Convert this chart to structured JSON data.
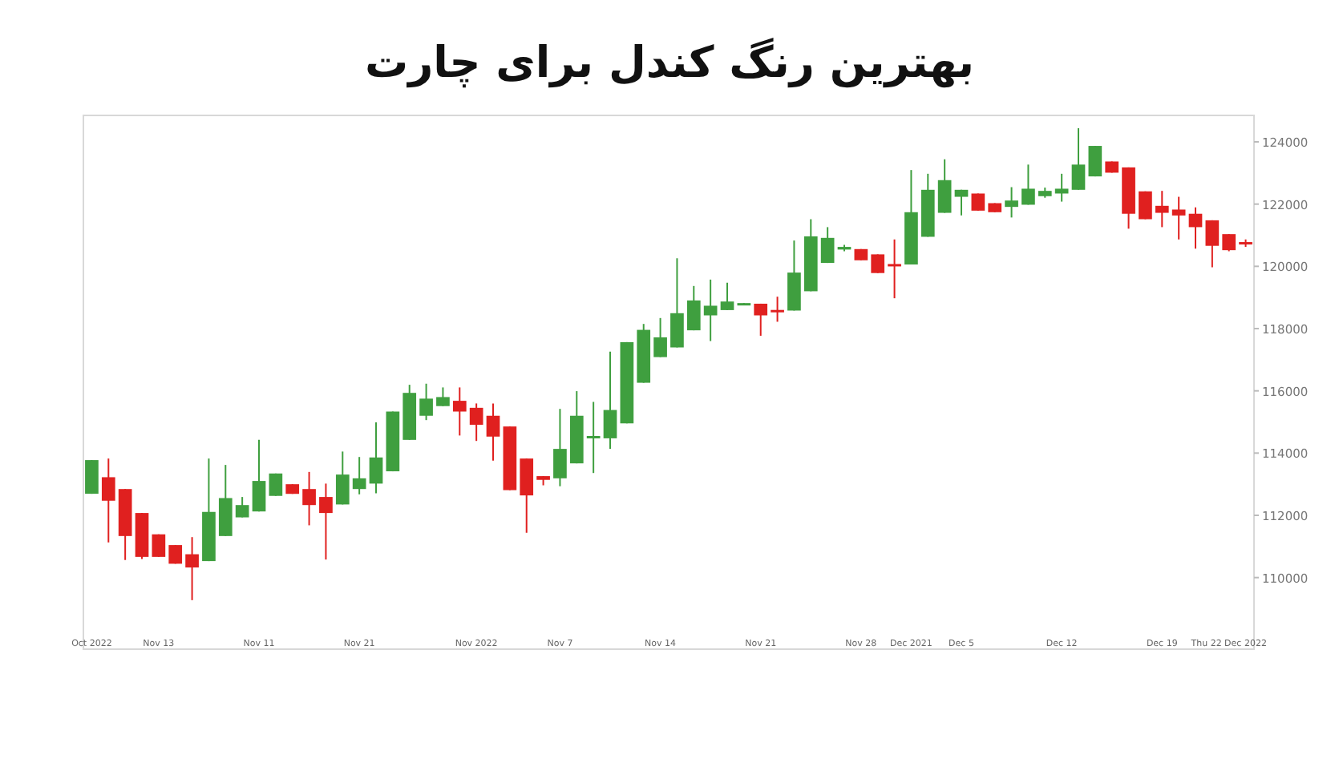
{
  "chart_data": {
    "type": "candlestick",
    "title": "بهترین رنگ کندل برای چارت",
    "categories": [
      "Oct 2022",
      null,
      null,
      null,
      "Nov 13",
      null,
      null,
      null,
      null,
      null,
      "Nov 11",
      null,
      null,
      null,
      null,
      null,
      "Nov 21",
      null,
      null,
      null,
      null,
      null,
      null,
      "Nov 2022",
      null,
      null,
      null,
      null,
      "Nov 7",
      null,
      null,
      null,
      null,
      null,
      "Nov 14",
      null,
      null,
      null,
      null,
      null,
      "Nov 21",
      null,
      null,
      null,
      null,
      null,
      "Nov 28",
      null,
      null,
      "Dec 2021",
      null,
      null,
      "Dec 5",
      null,
      null,
      null,
      null,
      null,
      "Dec 12",
      null,
      null,
      null,
      null,
      null,
      "Dec 19",
      null,
      null,
      null,
      "Thu 22 Dec 2022",
      null
    ],
    "ohlc": [
      [
        112693,
        113775,
        112693,
        113775
      ],
      [
        113225,
        113825,
        111130,
        112470
      ],
      [
        112845,
        112845,
        110565,
        111335
      ],
      [
        112075,
        112075,
        110600,
        110665
      ],
      [
        111390,
        111390,
        110665,
        110665
      ],
      [
        111045,
        111045,
        110445,
        110445
      ],
      [
        110750,
        111300,
        109275,
        110325
      ],
      [
        110530,
        113825,
        110530,
        112110
      ],
      [
        111335,
        113620,
        111335,
        112555
      ],
      [
        111935,
        112590,
        111935,
        112330
      ],
      [
        112125,
        114425,
        112125,
        113105
      ],
      [
        112625,
        113345,
        112625,
        113345
      ],
      [
        113000,
        113000,
        112690,
        112690
      ],
      [
        112845,
        113395,
        111680,
        112330
      ],
      [
        112590,
        113020,
        110580,
        112075
      ],
      [
        112350,
        114050,
        112350,
        113310
      ],
      [
        112845,
        113875,
        112675,
        113190
      ],
      [
        113020,
        114990,
        112710,
        113860
      ],
      [
        113415,
        115335,
        113415,
        115335
      ],
      [
        114425,
        116195,
        114425,
        115935
      ],
      [
        115200,
        116230,
        115060,
        115750
      ],
      [
        115510,
        116110,
        115510,
        115800
      ],
      [
        115680,
        116110,
        114565,
        115335
      ],
      [
        115455,
        115595,
        114390,
        114910
      ],
      [
        115200,
        115595,
        113755,
        114530
      ],
      [
        114855,
        114855,
        112810,
        112810
      ],
      [
        113825,
        113825,
        111440,
        112640
      ],
      [
        113260,
        113260,
        112965,
        113140
      ],
      [
        113190,
        115420,
        112935,
        114135
      ],
      [
        113670,
        115990,
        113670,
        115200
      ],
      [
        114480,
        115645,
        113360,
        114550
      ],
      [
        114475,
        117260,
        114135,
        115385
      ],
      [
        114955,
        117565,
        114955,
        117565
      ],
      [
        116260,
        118150,
        116260,
        117960
      ],
      [
        117085,
        118340,
        117085,
        117720
      ],
      [
        117395,
        120260,
        117395,
        118495
      ],
      [
        117945,
        119370,
        117945,
        118905
      ],
      [
        118425,
        119575,
        117600,
        118735
      ],
      [
        118595,
        119475,
        118595,
        118870
      ],
      [
        118770,
        118820,
        118770,
        118820
      ],
      [
        118800,
        118800,
        117770,
        118425
      ],
      [
        118600,
        119025,
        118220,
        118580
      ],
      [
        118580,
        120830,
        118580,
        119800
      ],
      [
        119200,
        121515,
        119200,
        120965
      ],
      [
        120110,
        121260,
        120110,
        120915
      ],
      [
        120540,
        120690,
        120485,
        120625
      ],
      [
        120555,
        120555,
        120195,
        120195
      ],
      [
        120385,
        120385,
        119785,
        119785
      ],
      [
        120075,
        120865,
        118975,
        120040
      ],
      [
        120060,
        123095,
        120060,
        121740
      ],
      [
        120950,
        122975,
        120950,
        122460
      ],
      [
        121720,
        123440,
        121720,
        122770
      ],
      [
        122235,
        122460,
        121635,
        122460
      ],
      [
        122340,
        122340,
        121790,
        121790
      ],
      [
        122030,
        122030,
        121740,
        121740
      ],
      [
        121910,
        122545,
        121570,
        122115
      ],
      [
        121980,
        123270,
        121980,
        122495
      ],
      [
        122255,
        122530,
        122205,
        122425
      ],
      [
        122340,
        122975,
        122080,
        122495
      ],
      [
        122460,
        124435,
        122460,
        123270
      ],
      [
        122890,
        123870,
        122890,
        123870
      ],
      [
        123370,
        123370,
        123010,
        123010
      ],
      [
        123180,
        123180,
        121210,
        121690
      ],
      [
        122410,
        122410,
        121515,
        121515
      ],
      [
        121945,
        122425,
        121260,
        121720
      ],
      [
        121825,
        122235,
        120865,
        121635
      ],
      [
        121690,
        121895,
        120570,
        121260
      ],
      [
        121480,
        121480,
        119970,
        120660
      ],
      [
        121035,
        121035,
        120485,
        120520
      ],
      [
        120780,
        120865,
        120625,
        120725
      ]
    ],
    "ylim": [
      107700,
      124850
    ],
    "yticks": [
      110000,
      112000,
      114000,
      116000,
      118000,
      120000,
      122000,
      124000
    ],
    "colors": [
      "#3f9f3f",
      "#e0201f",
      "#e0201f",
      "#e0201f",
      "#e0201f",
      "#e0201f",
      "#e0201f",
      "#3f9f3f",
      "#3f9f3f",
      "#3f9f3f",
      "#3f9f3f",
      "#3f9f3f",
      "#e0201f",
      "#e0201f",
      "#e0201f",
      "#3f9f3f",
      "#3f9f3f",
      "#3f9f3f",
      "#3f9f3f",
      "#3f9f3f",
      "#3f9f3f",
      "#3f9f3f",
      "#e0201f",
      "#e0201f",
      "#e0201f",
      "#e0201f",
      "#e0201f",
      "#e0201f",
      "#3f9f3f",
      "#3f9f3f",
      "#3f9f3f",
      "#3f9f3f",
      "#3f9f3f",
      "#3f9f3f",
      "#3f9f3f",
      "#3f9f3f",
      "#3f9f3f",
      "#3f9f3f",
      "#3f9f3f",
      "#3f9f3f",
      "#e0201f",
      "#e0201f",
      "#3f9f3f",
      "#3f9f3f",
      "#3f9f3f",
      "#3f9f3f",
      "#e0201f",
      "#e0201f",
      "#e0201f",
      "#3f9f3f",
      "#3f9f3f",
      "#3f9f3f",
      "#3f9f3f",
      "#e0201f",
      "#e0201f",
      "#3f9f3f",
      "#3f9f3f",
      "#3f9f3f",
      "#3f9f3f",
      "#3f9f3f",
      "#3f9f3f",
      "#e0201f",
      "#e0201f",
      "#e0201f",
      "#e0201f",
      "#e0201f",
      "#e0201f",
      "#e0201f",
      "#e0201f",
      "#e0201f"
    ]
  }
}
